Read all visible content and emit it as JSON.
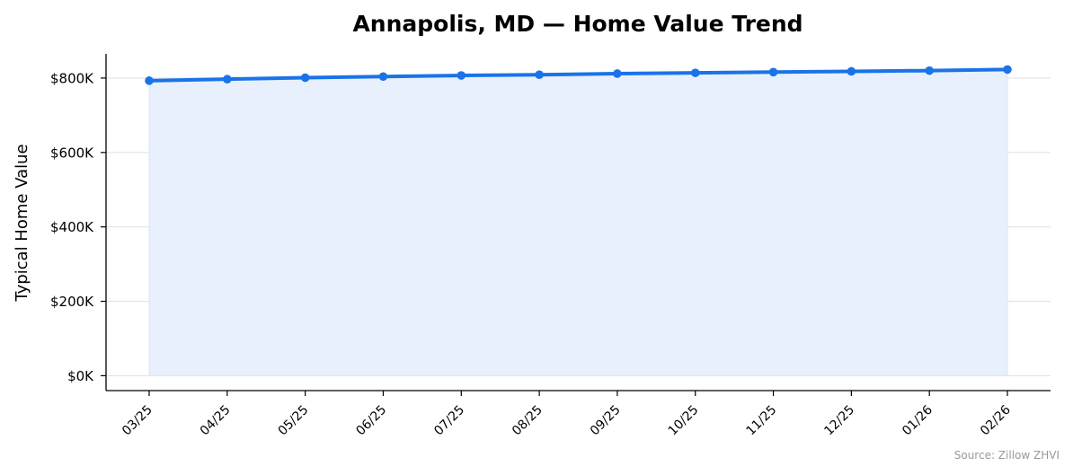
{
  "chart_data": {
    "type": "area",
    "title": "Annapolis, MD — Home Value Trend",
    "xlabel": "",
    "ylabel": "Typical Home Value",
    "categories": [
      "03/25",
      "04/25",
      "05/25",
      "06/25",
      "07/25",
      "08/25",
      "09/25",
      "10/25",
      "11/25",
      "12/25",
      "01/26",
      "02/26"
    ],
    "series": [
      {
        "values": [
          793000,
          797000,
          801000,
          804000,
          807000,
          809000,
          812000,
          814000,
          816000,
          818000,
          820000,
          823000
        ]
      }
    ],
    "yticks": [
      0,
      200000,
      400000,
      600000,
      800000
    ],
    "ytick_labels": [
      "$0K",
      "$200K",
      "$400K",
      "$600K",
      "$800K"
    ],
    "ylim": [
      -40000,
      865000
    ],
    "grid": "horizontal",
    "line_color": "#1a73e8",
    "fill_color": "#e8f0fe",
    "source_note": "Source: Zillow ZHVI"
  }
}
